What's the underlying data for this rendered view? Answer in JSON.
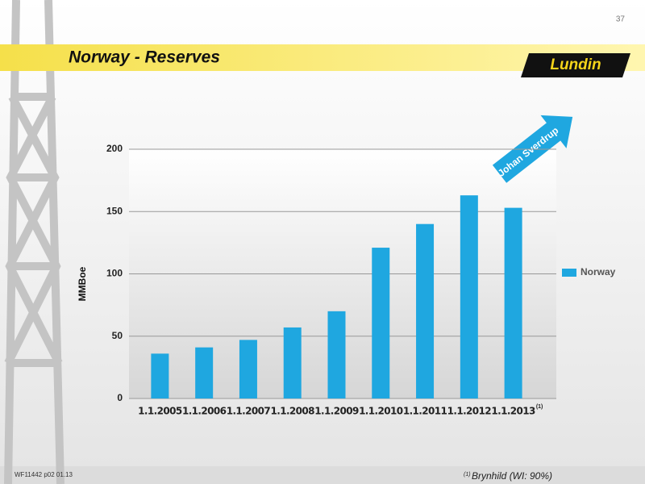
{
  "page_number": "37",
  "header": {
    "title": "Norway - Reserves",
    "logo": "Lundin"
  },
  "footer": {
    "code": "WF11442 p02 01.13"
  },
  "chart_data": {
    "type": "bar",
    "ylabel": "MMBoe",
    "categories": [
      "1.1.2005",
      "1.1.2006",
      "1.1.2007",
      "1.1.2008",
      "1.1.2009",
      "1.1.2010",
      "1.1.2011",
      "1.1.2012",
      "1.1.2013"
    ],
    "category_marker": "(1)",
    "series": [
      {
        "name": "Norway",
        "color": "#1fa7e0",
        "values": [
          36,
          41,
          47,
          57,
          70,
          121,
          140,
          163,
          153
        ]
      }
    ],
    "ylim": [
      0,
      200
    ],
    "yticks": [
      0,
      50,
      100,
      150,
      200
    ],
    "grid": true,
    "legend": "right",
    "annotation": "Johan Sverdrup",
    "footnote": {
      "marker": "(1)",
      "text": "Brynhild (WI: 90%)"
    }
  }
}
